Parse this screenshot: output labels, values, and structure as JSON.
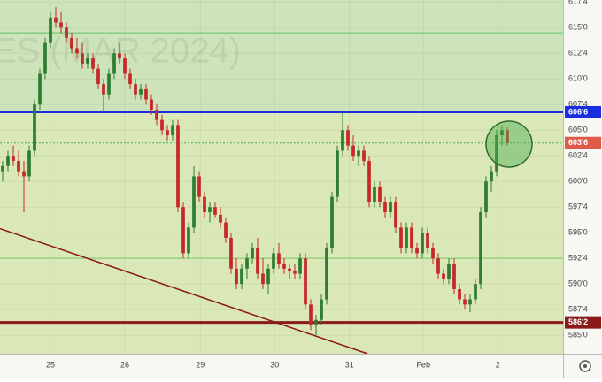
{
  "chart_data": {
    "type": "candlestick",
    "watermark": "ES (MAR 2024)",
    "up_color": "#2e7d32",
    "down_color": "#c62828",
    "xlim": [
      -0.5,
      105.5
    ],
    "ylim": [
      583.2,
      617.7
    ],
    "xticks": [
      {
        "value": 9,
        "label": "25"
      },
      {
        "value": 23,
        "label": "26"
      },
      {
        "value": 37.2,
        "label": "29"
      },
      {
        "value": 51.2,
        "label": "30"
      },
      {
        "value": 65.3,
        "label": "31"
      },
      {
        "value": 79.2,
        "label": "Feb"
      },
      {
        "value": 93.2,
        "label": "2"
      }
    ],
    "yticks": [
      {
        "value": 617.5,
        "label": "617'4"
      },
      {
        "value": 615,
        "label": "615'0"
      },
      {
        "value": 612.5,
        "label": "612'4"
      },
      {
        "value": 610,
        "label": "610'0"
      },
      {
        "value": 607.5,
        "label": "607'4"
      },
      {
        "value": 605,
        "label": "605'0"
      },
      {
        "value": 602.5,
        "label": "602'4"
      },
      {
        "value": 600,
        "label": "600'0"
      },
      {
        "value": 597.5,
        "label": "597'4"
      },
      {
        "value": 595,
        "label": "595'0"
      },
      {
        "value": 592.5,
        "label": "592'4"
      },
      {
        "value": 590,
        "label": "590'0"
      },
      {
        "value": 587.5,
        "label": "587'4"
      },
      {
        "value": 585,
        "label": "585'0"
      }
    ],
    "levels": [
      {
        "value": 614.5,
        "color": "#5cc46a"
      },
      {
        "value": 606.75,
        "color": "#1a2ee0",
        "label": "606'6"
      },
      {
        "value": 603.75,
        "color": "#4caf50",
        "label": "603'6",
        "label_color": "#e05a4a"
      },
      {
        "value": 592.5,
        "color": "#7cc86a"
      },
      {
        "value": 586.25,
        "color": "#8b1a1a",
        "label": "586'2"
      }
    ],
    "trendline": {
      "color": "#8b1a1a",
      "x": [
        -0.5,
        68.7
      ],
      "y": [
        595.4,
        583.2
      ]
    },
    "candles": [
      [
        601,
        602,
        600,
        601.5
      ],
      [
        601.5,
        603,
        601,
        602.5
      ],
      [
        602.5,
        603.5,
        601.5,
        602
      ],
      [
        602,
        603,
        600.5,
        601
      ],
      [
        601,
        602,
        597,
        600.5
      ],
      [
        600.5,
        603.5,
        600,
        603
      ],
      [
        603,
        608,
        602.5,
        607.5
      ],
      [
        607.5,
        611,
        607,
        610.5
      ],
      [
        610.5,
        614,
        610,
        613.5
      ],
      [
        613.5,
        616.5,
        613,
        616
      ],
      [
        616,
        617,
        615,
        615.5
      ],
      [
        615.5,
        616.5,
        614.5,
        615
      ],
      [
        615,
        615.5,
        613.5,
        614
      ],
      [
        614,
        614.5,
        612.5,
        613
      ],
      [
        613,
        614,
        612,
        612.5
      ],
      [
        612.5,
        613.5,
        611,
        611.5
      ],
      [
        611.5,
        612.5,
        611,
        612
      ],
      [
        612,
        612.5,
        610.5,
        611
      ],
      [
        611,
        611.5,
        609,
        609.5
      ],
      [
        609.5,
        610,
        606.75,
        608.5
      ],
      [
        608.5,
        611,
        608,
        610.5
      ],
      [
        610.5,
        613,
        610,
        612.5
      ],
      [
        612.5,
        613.5,
        611.5,
        612
      ],
      [
        612,
        612.5,
        610,
        610.5
      ],
      [
        610.5,
        611,
        609,
        609.5
      ],
      [
        609.5,
        610,
        608,
        608.5
      ],
      [
        608.5,
        609.5,
        608,
        609
      ],
      [
        609,
        609.5,
        607.5,
        608
      ],
      [
        608,
        608.5,
        606.5,
        607
      ],
      [
        607,
        607.5,
        605.5,
        606
      ],
      [
        606,
        606.5,
        604.5,
        605
      ],
      [
        605,
        605.5,
        604,
        604.5
      ],
      [
        604.5,
        606,
        604,
        605.5
      ],
      [
        605.5,
        606,
        597,
        597.5
      ],
      [
        597.5,
        598,
        592.5,
        593
      ],
      [
        593,
        596,
        592.5,
        595.5
      ],
      [
        595.5,
        601.5,
        595,
        600.5
      ],
      [
        600.5,
        601,
        598,
        598.5
      ],
      [
        598.5,
        599,
        596.5,
        597
      ],
      [
        597,
        598,
        596,
        597.5
      ],
      [
        597.5,
        598,
        596.5,
        596.75
      ],
      [
        596.75,
        597.5,
        595.5,
        596
      ],
      [
        596,
        596.5,
        594,
        594.5
      ],
      [
        594.5,
        595,
        591,
        591.5
      ],
      [
        591.5,
        592.5,
        589.5,
        590
      ],
      [
        590,
        592,
        589.5,
        591.5
      ],
      [
        591.5,
        593,
        590.5,
        592.5
      ],
      [
        592.5,
        594,
        592,
        593.5
      ],
      [
        593.5,
        594.5,
        590.5,
        591
      ],
      [
        591,
        592.5,
        589.5,
        590
      ],
      [
        590,
        592,
        589,
        591.5
      ],
      [
        591.5,
        593.5,
        591,
        593
      ],
      [
        593,
        594,
        591.5,
        592
      ],
      [
        592,
        592.5,
        591,
        591.5
      ],
      [
        591.5,
        592,
        590.5,
        591.25
      ],
      [
        591.25,
        592,
        590.5,
        591
      ],
      [
        591,
        593,
        590.5,
        592.5
      ],
      [
        592.5,
        593,
        587.5,
        588
      ],
      [
        588,
        588.5,
        585.5,
        586
      ],
      [
        586,
        587,
        585,
        586.5
      ],
      [
        586.5,
        589,
        586,
        588.5
      ],
      [
        588.5,
        594,
        588,
        593.5
      ],
      [
        593.5,
        599,
        593,
        598.5
      ],
      [
        598.5,
        603.5,
        598,
        603
      ],
      [
        603,
        606.75,
        602.5,
        605
      ],
      [
        605,
        605.5,
        603,
        603.5
      ],
      [
        603.5,
        604.5,
        602,
        602.5
      ],
      [
        602.5,
        603.5,
        601.5,
        603
      ],
      [
        603,
        603.5,
        601.5,
        602
      ],
      [
        602,
        602.5,
        597.5,
        598
      ],
      [
        598,
        600,
        597.5,
        599.5
      ],
      [
        599.5,
        600,
        597.5,
        598
      ],
      [
        598,
        598.5,
        596.5,
        597
      ],
      [
        597,
        598.5,
        596.5,
        598
      ],
      [
        598,
        598.5,
        595,
        595.5
      ],
      [
        595.5,
        596,
        593,
        593.5
      ],
      [
        593.5,
        596,
        593,
        595.5
      ],
      [
        595.5,
        596,
        593,
        593.5
      ],
      [
        593.5,
        594,
        592.5,
        593
      ],
      [
        593,
        595.5,
        592.5,
        595
      ],
      [
        595,
        595.5,
        593,
        593.5
      ],
      [
        593.5,
        594,
        592,
        592.5
      ],
      [
        592.5,
        593,
        590.5,
        591
      ],
      [
        591,
        591.5,
        590,
        590.5
      ],
      [
        590.5,
        592.5,
        590,
        592
      ],
      [
        592,
        592.5,
        589,
        589.5
      ],
      [
        589.5,
        590,
        588,
        588.5
      ],
      [
        588.5,
        589,
        587.5,
        588
      ],
      [
        588,
        589,
        587.25,
        588.5
      ],
      [
        588.5,
        590.5,
        588,
        590
      ],
      [
        590,
        597.5,
        589.5,
        597
      ],
      [
        597,
        600.5,
        596.5,
        600
      ],
      [
        600,
        601.5,
        599,
        601
      ],
      [
        601,
        605,
        600.5,
        604.5
      ],
      [
        604.5,
        605.5,
        603.5,
        605
      ],
      [
        605,
        605.25,
        603.5,
        603.75
      ]
    ]
  }
}
